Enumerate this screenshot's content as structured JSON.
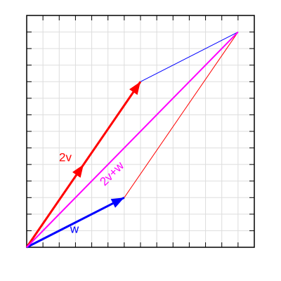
{
  "axes": {
    "xlim": [
      0,
      14
    ],
    "ylim": [
      0,
      14
    ],
    "xticks": [
      1,
      2,
      3,
      4,
      5,
      6,
      7,
      8,
      9,
      10,
      11,
      12,
      13
    ],
    "yticks": [
      1,
      2,
      3,
      4,
      5,
      6,
      7,
      8,
      9,
      10,
      11,
      12,
      13
    ],
    "grid": true
  },
  "vectors": [
    {
      "label": "2v",
      "x": 7,
      "y": 10,
      "color": "#ff0000",
      "arrowheads": [
        0.5,
        1
      ]
    },
    {
      "label": "w",
      "x": 6,
      "y": 3,
      "color": "#0000ff",
      "arrowheads": [
        1
      ]
    },
    {
      "label": "2v+w",
      "x": 13,
      "y": 13,
      "color": "#ff00ff",
      "arrowheads": []
    }
  ]
}
